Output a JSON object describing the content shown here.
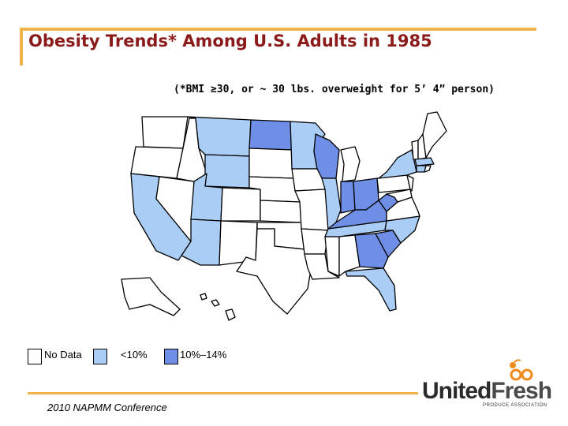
{
  "title": "Obesity Trends* Among U.S. Adults in 1985",
  "subtitle": "(*BMI ≥30, or ~ 30 lbs. overweight for 5’ 4” person)",
  "legend": {
    "items": [
      {
        "label": "No Data",
        "color": "#ffffff"
      },
      {
        "label": "<10%",
        "color": "#a9cdf5"
      },
      {
        "label": "10%–14%",
        "color": "#6f8fe6"
      }
    ]
  },
  "colors": {
    "accent": "#f0b24a",
    "title": "#8b1a1a",
    "no_data": "#ffffff",
    "lt10": "#a9cdf5",
    "p10_14": "#6f8fe6"
  },
  "footer": {
    "conference": "2010 NAPMM Conference"
  },
  "logo": {
    "word1": "United",
    "word2": "Fresh",
    "tagline": "PRODUCE ASSOCIATION"
  }
}
